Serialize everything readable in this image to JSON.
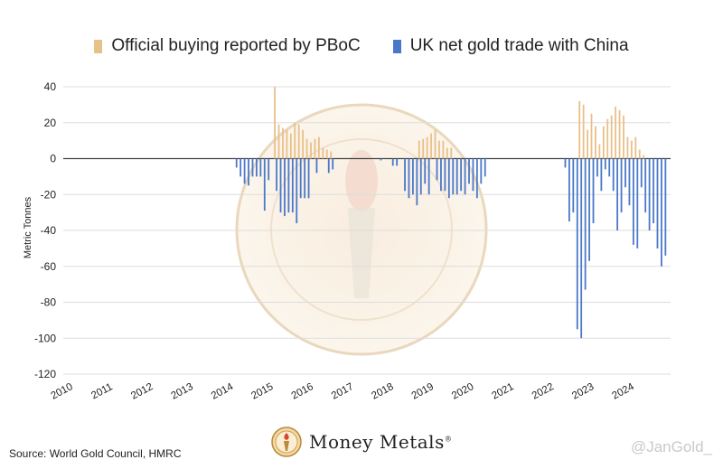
{
  "legend": {
    "pboc_label": "Official buying reported by PBoC",
    "uk_label": "UK net gold trade with China"
  },
  "colors": {
    "pboc": "#e8c08a",
    "uk": "#4a78c9",
    "grid": "#dddddd"
  },
  "source": "Source: World Gold Council, HMRC",
  "handle": "@JanGold_",
  "brand": {
    "name": "Money Metals",
    "mark": "®",
    "logo_icon": "torch-logo-icon"
  },
  "chart_data": {
    "type": "bar",
    "title": "",
    "xlabel": "",
    "ylabel": "Metric Tonnes",
    "ylim": [
      -120,
      40
    ],
    "yticks": [
      40,
      20,
      0,
      -20,
      -40,
      -60,
      -80,
      -100,
      -120
    ],
    "xticks": [
      "2010",
      "2011",
      "2012",
      "2013",
      "2014",
      "2015",
      "2016",
      "2017",
      "2018",
      "2019",
      "2020",
      "2021",
      "2022",
      "2023",
      "2024"
    ],
    "x_start_year": 2010,
    "grid": true,
    "legend_position": "top",
    "series": [
      {
        "name": "Official buying reported by PBoC",
        "points": [
          [
            2015.3,
            40
          ],
          [
            2015.4,
            19
          ],
          [
            2015.5,
            17
          ],
          [
            2015.6,
            16
          ],
          [
            2015.7,
            14
          ],
          [
            2015.8,
            20
          ],
          [
            2015.9,
            19
          ],
          [
            2016.0,
            16
          ],
          [
            2016.1,
            11
          ],
          [
            2016.2,
            9
          ],
          [
            2016.3,
            11
          ],
          [
            2016.4,
            12
          ],
          [
            2016.5,
            6
          ],
          [
            2016.6,
            5
          ],
          [
            2016.7,
            4
          ],
          [
            2018.9,
            10
          ],
          [
            2019.0,
            11
          ],
          [
            2019.1,
            12
          ],
          [
            2019.2,
            14
          ],
          [
            2019.3,
            16
          ],
          [
            2019.4,
            10
          ],
          [
            2019.5,
            10
          ],
          [
            2019.6,
            6
          ],
          [
            2019.7,
            6
          ],
          [
            2022.9,
            32
          ],
          [
            2023.0,
            30
          ],
          [
            2023.1,
            16
          ],
          [
            2023.2,
            25
          ],
          [
            2023.3,
            18
          ],
          [
            2023.4,
            8
          ],
          [
            2023.5,
            18
          ],
          [
            2023.6,
            22
          ],
          [
            2023.7,
            24
          ],
          [
            2023.8,
            29
          ],
          [
            2023.9,
            27
          ],
          [
            2024.0,
            24
          ],
          [
            2024.1,
            12
          ],
          [
            2024.2,
            10
          ],
          [
            2024.3,
            12
          ],
          [
            2024.4,
            5
          ],
          [
            2024.5,
            2
          ]
        ]
      },
      {
        "name": "UK net gold trade with China",
        "points": [
          [
            2014.3,
            -5
          ],
          [
            2014.4,
            -10
          ],
          [
            2014.5,
            -14
          ],
          [
            2014.6,
            -15
          ],
          [
            2014.7,
            -10
          ],
          [
            2014.8,
            -10
          ],
          [
            2014.9,
            -10
          ],
          [
            2015.0,
            -29
          ],
          [
            2015.1,
            -12
          ],
          [
            2015.3,
            -18
          ],
          [
            2015.4,
            -30
          ],
          [
            2015.5,
            -32
          ],
          [
            2015.6,
            -30
          ],
          [
            2015.7,
            -30
          ],
          [
            2015.8,
            -36
          ],
          [
            2015.9,
            -22
          ],
          [
            2016.0,
            -22
          ],
          [
            2016.1,
            -22
          ],
          [
            2016.3,
            -8
          ],
          [
            2016.6,
            -8
          ],
          [
            2016.7,
            -6
          ],
          [
            2017.9,
            -1
          ],
          [
            2018.2,
            -4
          ],
          [
            2018.3,
            -4
          ],
          [
            2018.5,
            -18
          ],
          [
            2018.6,
            -22
          ],
          [
            2018.7,
            -20
          ],
          [
            2018.8,
            -26
          ],
          [
            2018.9,
            -20
          ],
          [
            2019.0,
            -14
          ],
          [
            2019.1,
            -20
          ],
          [
            2019.3,
            -12
          ],
          [
            2019.4,
            -18
          ],
          [
            2019.5,
            -18
          ],
          [
            2019.6,
            -22
          ],
          [
            2019.7,
            -20
          ],
          [
            2019.8,
            -20
          ],
          [
            2019.9,
            -18
          ],
          [
            2020.0,
            -20
          ],
          [
            2020.1,
            -14
          ],
          [
            2020.2,
            -18
          ],
          [
            2020.3,
            -22
          ],
          [
            2020.4,
            -14
          ],
          [
            2020.5,
            -10
          ],
          [
            2022.5,
            -5
          ],
          [
            2022.6,
            -35
          ],
          [
            2022.7,
            -30
          ],
          [
            2022.8,
            -95
          ],
          [
            2022.9,
            -100
          ],
          [
            2023.0,
            -73
          ],
          [
            2023.1,
            -57
          ],
          [
            2023.2,
            -36
          ],
          [
            2023.3,
            -10
          ],
          [
            2023.4,
            -18
          ],
          [
            2023.5,
            -6
          ],
          [
            2023.6,
            -10
          ],
          [
            2023.7,
            -18
          ],
          [
            2023.8,
            -40
          ],
          [
            2023.9,
            -30
          ],
          [
            2024.0,
            -16
          ],
          [
            2024.1,
            -26
          ],
          [
            2024.2,
            -48
          ],
          [
            2024.3,
            -50
          ],
          [
            2024.4,
            -16
          ],
          [
            2024.5,
            -30
          ],
          [
            2024.6,
            -40
          ],
          [
            2024.7,
            -36
          ],
          [
            2024.8,
            -50
          ],
          [
            2024.9,
            -60
          ],
          [
            2025.0,
            -54
          ]
        ]
      }
    ]
  }
}
